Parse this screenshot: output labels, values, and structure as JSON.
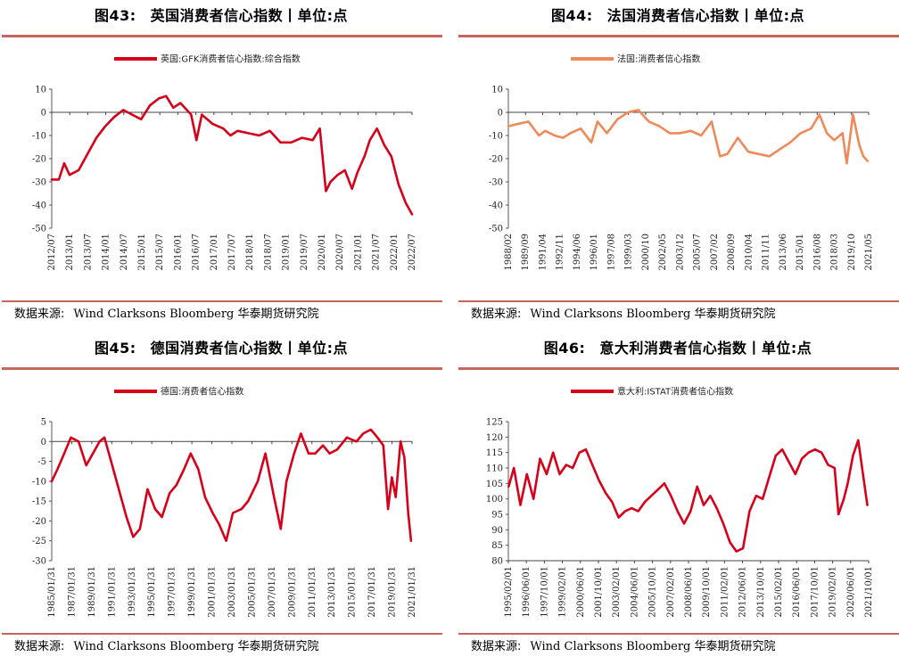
{
  "source_label": "数据来源:",
  "source_text": "Wind Clarksons Bloomberg 华泰期货研究院",
  "chart_data": [
    {
      "type": "line",
      "fig_no": "图43:",
      "title": "英国消费者信心指数丨单位:点",
      "color": "#d7001a",
      "series": [
        {
          "name": "英国:GFK消费者信心指数:综合指数"
        }
      ],
      "ylim": [
        -50,
        10
      ],
      "yticks": [
        10,
        0,
        -10,
        -20,
        -30,
        -40,
        -50
      ],
      "x_range": [
        2012.5,
        2022.58
      ],
      "xtick_labels": [
        "2012/07",
        "2013/01",
        "2013/07",
        "2014/01",
        "2014/07",
        "2015/01",
        "2015/07",
        "2016/01",
        "2016/07",
        "2017/01",
        "2017/07",
        "2018/01",
        "2018/07",
        "2019/01",
        "2019/07",
        "2020/01",
        "2020/07",
        "2021/01",
        "2021/07",
        "2022/01",
        "2022/07"
      ],
      "x": [
        2012.5,
        2012.7,
        2012.85,
        2013.0,
        2013.25,
        2013.5,
        2013.75,
        2014.0,
        2014.25,
        2014.5,
        2014.75,
        2015.0,
        2015.25,
        2015.5,
        2015.7,
        2015.9,
        2016.1,
        2016.4,
        2016.55,
        2016.7,
        2017.0,
        2017.3,
        2017.5,
        2017.7,
        2018.0,
        2018.3,
        2018.6,
        2018.9,
        2019.2,
        2019.5,
        2019.8,
        2020.0,
        2020.17,
        2020.3,
        2020.5,
        2020.7,
        2020.9,
        2021.05,
        2021.25,
        2021.4,
        2021.6,
        2021.8,
        2022.0,
        2022.2,
        2022.4,
        2022.58
      ],
      "y": [
        -29,
        -29,
        -22,
        -27,
        -25,
        -18,
        -11,
        -6,
        -2,
        1,
        -1,
        -3,
        3,
        6,
        7,
        2,
        4,
        -1,
        -12,
        -1,
        -5,
        -7,
        -10,
        -8,
        -9,
        -10,
        -8,
        -13,
        -13,
        -11,
        -12,
        -7,
        -34,
        -30,
        -27,
        -25,
        -33,
        -26,
        -19,
        -12,
        -7,
        -14,
        -19,
        -31,
        -39,
        -44
      ]
    },
    {
      "type": "line",
      "fig_no": "图44:",
      "title": "法国消费者信心指数丨单位:点",
      "color": "#f0895a",
      "series": [
        {
          "name": "法国:消费者信心指数"
        }
      ],
      "ylim": [
        -50,
        10
      ],
      "yticks": [
        10,
        0,
        -10,
        -20,
        -30,
        -40,
        -50
      ],
      "x_range": [
        1988.08,
        2022.5
      ],
      "xtick_labels": [
        "1988/02",
        "1989/09",
        "1991/04",
        "1992/11",
        "1994/06",
        "1996/01",
        "1997/08",
        "1999/03",
        "2000/10",
        "2002/05",
        "2003/12",
        "2005/07",
        "2007/02",
        "2008/09",
        "2010/04",
        "2011/11",
        "2013/06",
        "2015/01",
        "2016/08",
        "2018/03",
        "2019/10",
        "2021/05"
      ],
      "x": [
        1988.1,
        1989.0,
        1990.0,
        1991.0,
        1991.6,
        1992.5,
        1993.3,
        1994.0,
        1995.0,
        1996.0,
        1996.6,
        1997.5,
        1998.5,
        1999.5,
        2000.5,
        2001.5,
        2002.5,
        2003.5,
        2004.5,
        2005.5,
        2006.5,
        2007.5,
        2008.3,
        2009.0,
        2010.0,
        2011.0,
        2012.0,
        2013.0,
        2014.0,
        2015.0,
        2016.0,
        2017.0,
        2017.8,
        2018.5,
        2019.2,
        2020.0,
        2020.4,
        2021.0,
        2021.6,
        2022.0,
        2022.4
      ],
      "y": [
        -6,
        -5,
        -4,
        -10,
        -8,
        -10,
        -11,
        -9,
        -7,
        -13,
        -4,
        -9,
        -3,
        0,
        1,
        -4,
        -6,
        -9,
        -9,
        -8,
        -10,
        -4,
        -19,
        -18,
        -11,
        -17,
        -18,
        -19,
        -16,
        -13,
        -9,
        -7,
        -1,
        -9,
        -12,
        -9,
        -22,
        -1,
        -14,
        -19,
        -21
      ]
    },
    {
      "type": "line",
      "fig_no": "图45:",
      "title": "德国消费者信心指数丨单位:点",
      "color": "#d7001a",
      "series": [
        {
          "name": "德国:消费者信心指数"
        }
      ],
      "ylim": [
        -30,
        5
      ],
      "yticks": [
        5,
        0,
        -5,
        -10,
        -15,
        -20,
        -25,
        -30
      ],
      "x_range": [
        1985.0,
        2022.6
      ],
      "xtick_labels": [
        "1985/01/31",
        "1987/01/31",
        "1989/01/31",
        "1991/01/31",
        "1993/01/31",
        "1995/01/31",
        "1997/01/31",
        "1999/01/31",
        "2001/01/31",
        "2003/01/31",
        "2005/01/31",
        "2007/01/31",
        "2009/01/31",
        "2011/01/31",
        "2013/01/31",
        "2015/01/31",
        "2017/01/31",
        "2019/01/31",
        "2021/01/31"
      ],
      "x": [
        1985.0,
        1985.6,
        1986.3,
        1987.0,
        1987.8,
        1988.6,
        1989.3,
        1990.0,
        1990.5,
        1991.2,
        1992.0,
        1992.8,
        1993.5,
        1994.2,
        1995.0,
        1995.8,
        1996.5,
        1997.3,
        1998.0,
        1998.8,
        1999.5,
        2000.3,
        2001.0,
        2001.8,
        2002.5,
        2003.2,
        2003.9,
        2004.8,
        2005.5,
        2006.5,
        2007.3,
        2008.2,
        2008.9,
        2009.5,
        2010.3,
        2011.0,
        2011.8,
        2012.5,
        2013.3,
        2014.0,
        2014.8,
        2015.8,
        2016.8,
        2017.5,
        2018.3,
        2019.0,
        2019.6,
        2020.1,
        2020.5,
        2020.9,
        2021.4,
        2021.8,
        2022.2,
        2022.5
      ],
      "y": [
        -10,
        -7,
        -3,
        1,
        0,
        -6,
        -3,
        0,
        1,
        -5,
        -12,
        -19,
        -24,
        -22,
        -12,
        -17,
        -19,
        -13,
        -11,
        -7,
        -3,
        -7,
        -14,
        -18,
        -21,
        -25,
        -18,
        -17,
        -15,
        -10,
        -3,
        -14,
        -22,
        -10,
        -3,
        2,
        -3,
        -3,
        -1,
        -3,
        -2,
        1,
        0,
        2,
        3,
        1,
        -1,
        -17,
        -9,
        -14,
        0,
        -4,
        -18,
        -25
      ]
    },
    {
      "type": "line",
      "fig_no": "图46:",
      "title": "意大利消费者信心指数丨单位:点",
      "color": "#d7001a",
      "series": [
        {
          "name": "意大利:ISTAT消费者信心指数"
        }
      ],
      "ylim": [
        80,
        125
      ],
      "yticks": [
        125,
        120,
        115,
        110,
        105,
        100,
        95,
        90,
        85,
        80
      ],
      "x_range": [
        1995.08,
        2022.6
      ],
      "xtick_labels": [
        "1995/02/01",
        "1996/06/01",
        "1997/10/01",
        "1999/02/01",
        "2000/06/01",
        "2001/10/01",
        "2003/02/01",
        "2004/06/01",
        "2005/10/01",
        "2007/02/01",
        "2008/06/01",
        "2009/10/01",
        "2011/02/01",
        "2012/06/01",
        "2013/10/01",
        "2015/02/01",
        "2016/06/01",
        "2017/10/01",
        "2019/02/01",
        "2020/06/01",
        "2021/10/01"
      ],
      "x": [
        1995.1,
        1995.5,
        1996.0,
        1996.5,
        1997.0,
        1997.5,
        1998.0,
        1998.5,
        1999.0,
        1999.5,
        2000.0,
        2000.5,
        2001.0,
        2001.5,
        2002.0,
        2002.5,
        2003.0,
        2003.5,
        2004.0,
        2004.5,
        2005.0,
        2005.5,
        2006.0,
        2006.5,
        2007.0,
        2007.5,
        2008.0,
        2008.5,
        2009.0,
        2009.5,
        2010.0,
        2010.5,
        2011.0,
        2011.5,
        2012.0,
        2012.5,
        2013.0,
        2013.5,
        2014.0,
        2014.5,
        2015.0,
        2015.5,
        2016.0,
        2016.5,
        2017.0,
        2017.5,
        2018.0,
        2018.5,
        2019.0,
        2019.5,
        2020.0,
        2020.3,
        2020.7,
        2021.0,
        2021.4,
        2021.8,
        2022.2,
        2022.5
      ],
      "y": [
        104,
        110,
        98,
        108,
        100,
        113,
        108,
        115,
        108,
        111,
        110,
        115,
        116,
        111,
        106,
        102,
        99,
        94,
        96,
        97,
        96,
        99,
        101,
        103,
        105,
        101,
        96,
        92,
        96,
        104,
        98,
        101,
        97,
        92,
        86,
        83,
        84,
        96,
        101,
        100,
        107,
        114,
        116,
        112,
        108,
        113,
        115,
        116,
        115,
        111,
        110,
        95,
        100,
        105,
        114,
        119,
        107,
        98
      ]
    }
  ]
}
